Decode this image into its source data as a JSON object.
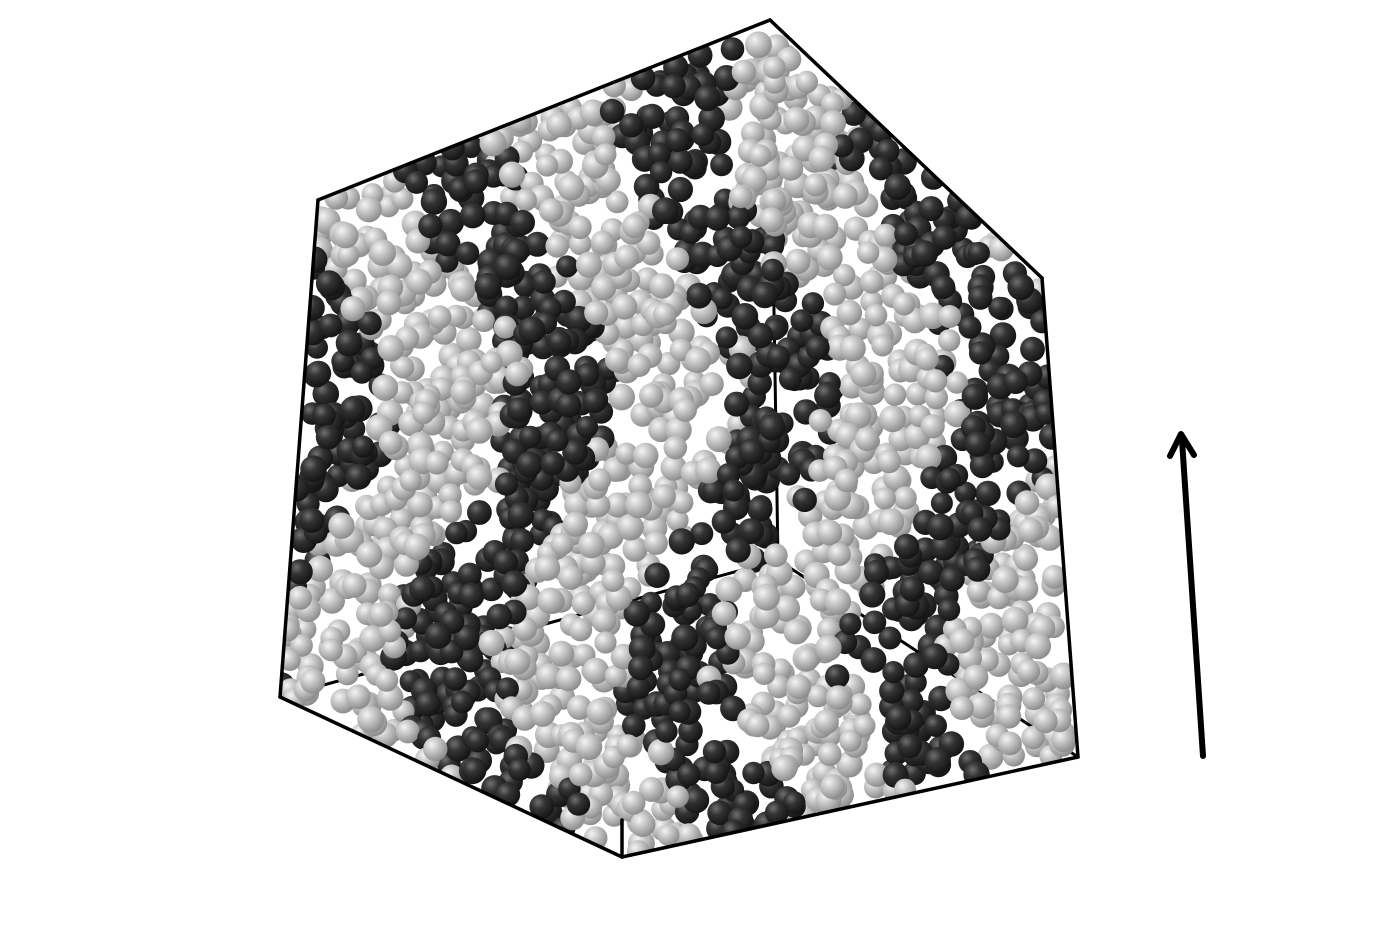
{
  "scene": {
    "subject": "particle-packing-in-cube",
    "particle_types": [
      {
        "name": "dark-sphere",
        "color": "#2e2e2e",
        "highlight": "#6a6a6a"
      },
      {
        "name": "light-sphere",
        "color": "#b8b8b8",
        "highlight": "#f2f2f2"
      }
    ],
    "box_edge_color": "#000000",
    "arrow_color": "#000000",
    "background": "#ffffff"
  }
}
